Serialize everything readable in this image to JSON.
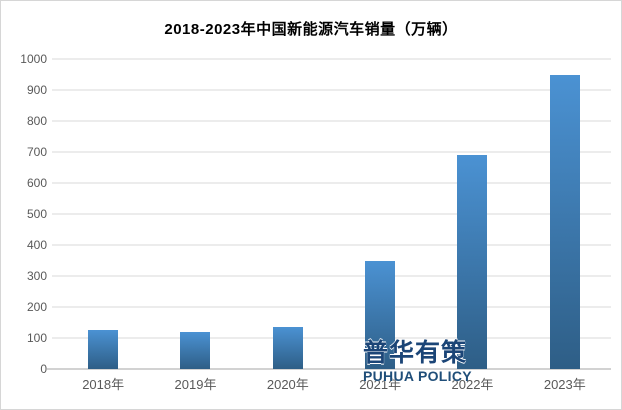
{
  "chart_data": {
    "type": "bar",
    "title": "2018-2023年中国新能源汽车销量（万辆）",
    "categories": [
      "2018年",
      "2019年",
      "2020年",
      "2021年",
      "2022年",
      "2023年"
    ],
    "values": [
      125,
      120,
      135,
      350,
      690,
      950
    ],
    "xlabel": "",
    "ylabel": "",
    "ylim": [
      0,
      1000
    ],
    "yticks": [
      0,
      100,
      200,
      300,
      400,
      500,
      600,
      700,
      800,
      900,
      1000
    ],
    "grid": "horizontal",
    "legend": "none"
  },
  "watermark": {
    "line1": "普华有策",
    "line2": "PUHUA POLICY",
    "color_line1": "#1b4577",
    "color_line2": "#1f4e79"
  },
  "colors": {
    "title": "#000000",
    "axis_label": "#595959",
    "gridline": "#d9d9d9",
    "axis_line": "#a6a6a6",
    "frame_border": "#d6d6d6",
    "background": "#ffffff",
    "bar_gradient_top": "#4b92d3",
    "bar_gradient_bottom": "#2e5e86"
  }
}
